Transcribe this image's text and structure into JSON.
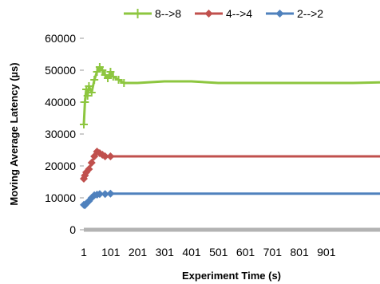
{
  "chart_data": {
    "type": "line",
    "title": "",
    "xlabel": "Experiment Time (s)",
    "ylabel": "Moving Average Latency (µs)",
    "ylim": [
      0,
      60000
    ],
    "yticks": [
      "0",
      "10000",
      "20000",
      "30000",
      "40000",
      "50000",
      "60000"
    ],
    "xlim": [
      1,
      1100
    ],
    "xticks": [
      "1",
      "101",
      "201",
      "301",
      "401",
      "501",
      "601",
      "701",
      "801",
      "901"
    ],
    "grid": false,
    "legend_position": "top",
    "series": [
      {
        "name": "8-->8",
        "color": "#8dc63f",
        "marker": "plus",
        "points": [
          [
            1,
            33000
          ],
          [
            5,
            40000
          ],
          [
            10,
            44000
          ],
          [
            15,
            42000
          ],
          [
            20,
            45000
          ],
          [
            30,
            43000
          ],
          [
            40,
            47000
          ],
          [
            50,
            49500
          ],
          [
            60,
            51000
          ],
          [
            70,
            50000
          ],
          [
            80,
            48500
          ],
          [
            90,
            47500
          ],
          [
            100,
            49500
          ],
          [
            110,
            48000
          ],
          [
            130,
            47000
          ],
          [
            150,
            46000
          ],
          [
            200,
            46000
          ],
          [
            300,
            46500
          ],
          [
            400,
            46500
          ],
          [
            500,
            46000
          ],
          [
            600,
            46000
          ],
          [
            700,
            46000
          ],
          [
            800,
            46000
          ],
          [
            900,
            46000
          ],
          [
            1000,
            46000
          ],
          [
            1100,
            46200
          ]
        ]
      },
      {
        "name": "4-->4",
        "color": "#c0504d",
        "marker": "diamond",
        "points": [
          [
            1,
            16000
          ],
          [
            5,
            17000
          ],
          [
            10,
            18000
          ],
          [
            20,
            19000
          ],
          [
            30,
            21000
          ],
          [
            40,
            23000
          ],
          [
            50,
            24500
          ],
          [
            60,
            24000
          ],
          [
            70,
            23500
          ],
          [
            80,
            23000
          ],
          [
            100,
            23000
          ],
          [
            200,
            23000
          ],
          [
            300,
            23000
          ],
          [
            400,
            23000
          ],
          [
            500,
            23000
          ],
          [
            600,
            23000
          ],
          [
            700,
            23000
          ],
          [
            800,
            23000
          ],
          [
            900,
            23000
          ],
          [
            1000,
            23000
          ],
          [
            1100,
            23000
          ]
        ]
      },
      {
        "name": "2-->2",
        "color": "#4f81bd",
        "marker": "diamond",
        "points": [
          [
            1,
            7800
          ],
          [
            5,
            7700
          ],
          [
            10,
            8200
          ],
          [
            20,
            9000
          ],
          [
            30,
            10000
          ],
          [
            40,
            10800
          ],
          [
            50,
            11000
          ],
          [
            60,
            11200
          ],
          [
            80,
            11200
          ],
          [
            100,
            11300
          ],
          [
            200,
            11300
          ],
          [
            300,
            11300
          ],
          [
            400,
            11300
          ],
          [
            500,
            11300
          ],
          [
            600,
            11300
          ],
          [
            700,
            11300
          ],
          [
            800,
            11300
          ],
          [
            900,
            11300
          ],
          [
            1000,
            11300
          ],
          [
            1100,
            11300
          ]
        ]
      }
    ]
  }
}
